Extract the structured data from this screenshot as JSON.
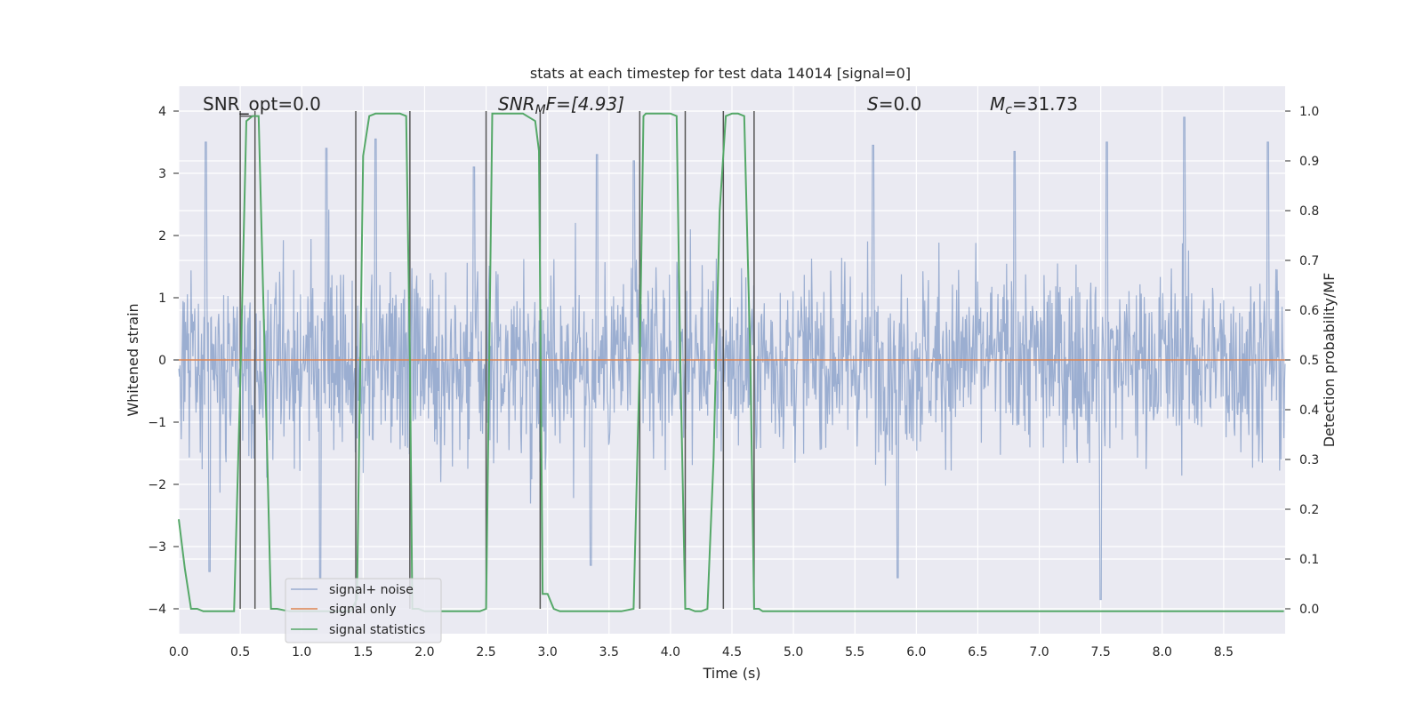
{
  "chart_data": {
    "type": "line",
    "title": "stats at each timestep for test data 14014 [signal=0]",
    "xlabel": "Time (s)",
    "ylabel": "Whitened strain",
    "ylabel_right": "Detection probability/MF",
    "xlim": [
      0.0,
      9.0
    ],
    "ylim": [
      -4.4,
      4.4
    ],
    "ylim_right": [
      -0.05,
      1.05
    ],
    "x_ticks": [
      "0.0",
      "0.5",
      "1.0",
      "1.5",
      "2.0",
      "2.5",
      "3.0",
      "3.5",
      "4.0",
      "4.5",
      "5.0",
      "5.5",
      "6.0",
      "6.5",
      "7.0",
      "7.5",
      "8.0",
      "8.5"
    ],
    "y_ticks": [
      "4",
      "3",
      "2",
      "1",
      "0",
      "−1",
      "−2",
      "−3",
      "−4"
    ],
    "y_right_ticks": [
      "1.0",
      "0.9",
      "0.8",
      "0.7",
      "0.6",
      "0.5",
      "0.4",
      "0.3",
      "0.2",
      "0.1",
      "0.0"
    ],
    "grid": true,
    "legend_position": "lower-left",
    "colors": {
      "noise": "#4c72b0",
      "signal_only": "#dd8452",
      "statistics": "#55a868",
      "markers": "#555555",
      "background": "#eaeaf2"
    },
    "legend": [
      "signal+ noise",
      "signal only",
      "signal statistics"
    ],
    "annotations": {
      "snr_opt": "SNR_opt=0.0",
      "snr_mf_name": "SNR",
      "snr_mf_sub": "M",
      "snr_mf_rest": "F=[4.93]",
      "s_name": "S",
      "s_rest": "=0.0",
      "mc_name": "M",
      "mc_sub": "c",
      "mc_rest": "=31.73"
    },
    "series_statistics": {
      "x": [
        0.0,
        0.05,
        0.1,
        0.15,
        0.2,
        0.3,
        0.4,
        0.45,
        0.5,
        0.55,
        0.6,
        0.65,
        0.7,
        0.75,
        0.8,
        0.9,
        1.0,
        1.1,
        1.2,
        1.3,
        1.4,
        1.45,
        1.5,
        1.55,
        1.6,
        1.7,
        1.8,
        1.85,
        1.88,
        1.9,
        1.95,
        2.0,
        2.1,
        2.2,
        2.3,
        2.4,
        2.45,
        2.5,
        2.55,
        2.6,
        2.7,
        2.8,
        2.9,
        2.93,
        2.96,
        3.0,
        3.05,
        3.1,
        3.2,
        3.3,
        3.4,
        3.5,
        3.6,
        3.7,
        3.75,
        3.78,
        3.8,
        3.9,
        4.0,
        4.05,
        4.08,
        4.12,
        4.15,
        4.2,
        4.25,
        4.3,
        4.35,
        4.4,
        4.45,
        4.5,
        4.55,
        4.6,
        4.65,
        4.68,
        4.72,
        4.75,
        4.8,
        4.9,
        5.0,
        5.5,
        6.0,
        6.5,
        7.0,
        7.5,
        8.0,
        8.5,
        8.99
      ],
      "values": [
        0.18,
        0.08,
        0.0,
        0.0,
        -0.005,
        -0.005,
        -0.005,
        -0.005,
        0.45,
        0.98,
        0.99,
        0.99,
        0.5,
        0.0,
        0.0,
        -0.005,
        -0.005,
        -0.005,
        -0.005,
        -0.005,
        -0.005,
        0.02,
        0.91,
        0.99,
        0.995,
        0.995,
        0.995,
        0.99,
        0.5,
        0.0,
        0.0,
        -0.005,
        -0.005,
        -0.005,
        -0.005,
        -0.005,
        -0.005,
        0.0,
        0.995,
        0.995,
        0.995,
        0.995,
        0.98,
        0.92,
        0.03,
        0.03,
        0.0,
        -0.005,
        -0.005,
        -0.005,
        -0.005,
        -0.005,
        -0.005,
        0.0,
        0.5,
        0.99,
        0.995,
        0.995,
        0.995,
        0.99,
        0.5,
        0.0,
        0.0,
        -0.005,
        -0.005,
        0.0,
        0.3,
        0.8,
        0.99,
        0.995,
        0.995,
        0.99,
        0.5,
        0.0,
        0.0,
        -0.005,
        -0.005,
        -0.005,
        -0.005,
        -0.005,
        -0.005,
        -0.005,
        -0.005,
        -0.005,
        -0.005,
        -0.005,
        -0.005
      ]
    },
    "series_signal_only": {
      "x": [
        0.0,
        9.0
      ],
      "values": [
        0,
        0
      ]
    },
    "vertical_markers": [
      0.5,
      0.62,
      1.44,
      1.88,
      2.5,
      2.94,
      3.75,
      4.12,
      4.43,
      4.68
    ],
    "noise_envelope_peaks": [
      {
        "x": 0.22,
        "y": 3.5
      },
      {
        "x": 1.2,
        "y": 3.4
      },
      {
        "x": 1.6,
        "y": 3.55
      },
      {
        "x": 2.4,
        "y": 3.1
      },
      {
        "x": 3.4,
        "y": 3.3
      },
      {
        "x": 3.7,
        "y": 3.2
      },
      {
        "x": 5.65,
        "y": 3.45
      },
      {
        "x": 6.8,
        "y": 3.35
      },
      {
        "x": 7.55,
        "y": 3.5
      },
      {
        "x": 8.18,
        "y": 3.9
      },
      {
        "x": 8.86,
        "y": 3.5
      },
      {
        "x": 0.25,
        "y": -3.4
      },
      {
        "x": 1.15,
        "y": -3.5
      },
      {
        "x": 3.35,
        "y": -3.3
      },
      {
        "x": 5.85,
        "y": -3.5
      },
      {
        "x": 7.5,
        "y": -3.85
      }
    ]
  }
}
